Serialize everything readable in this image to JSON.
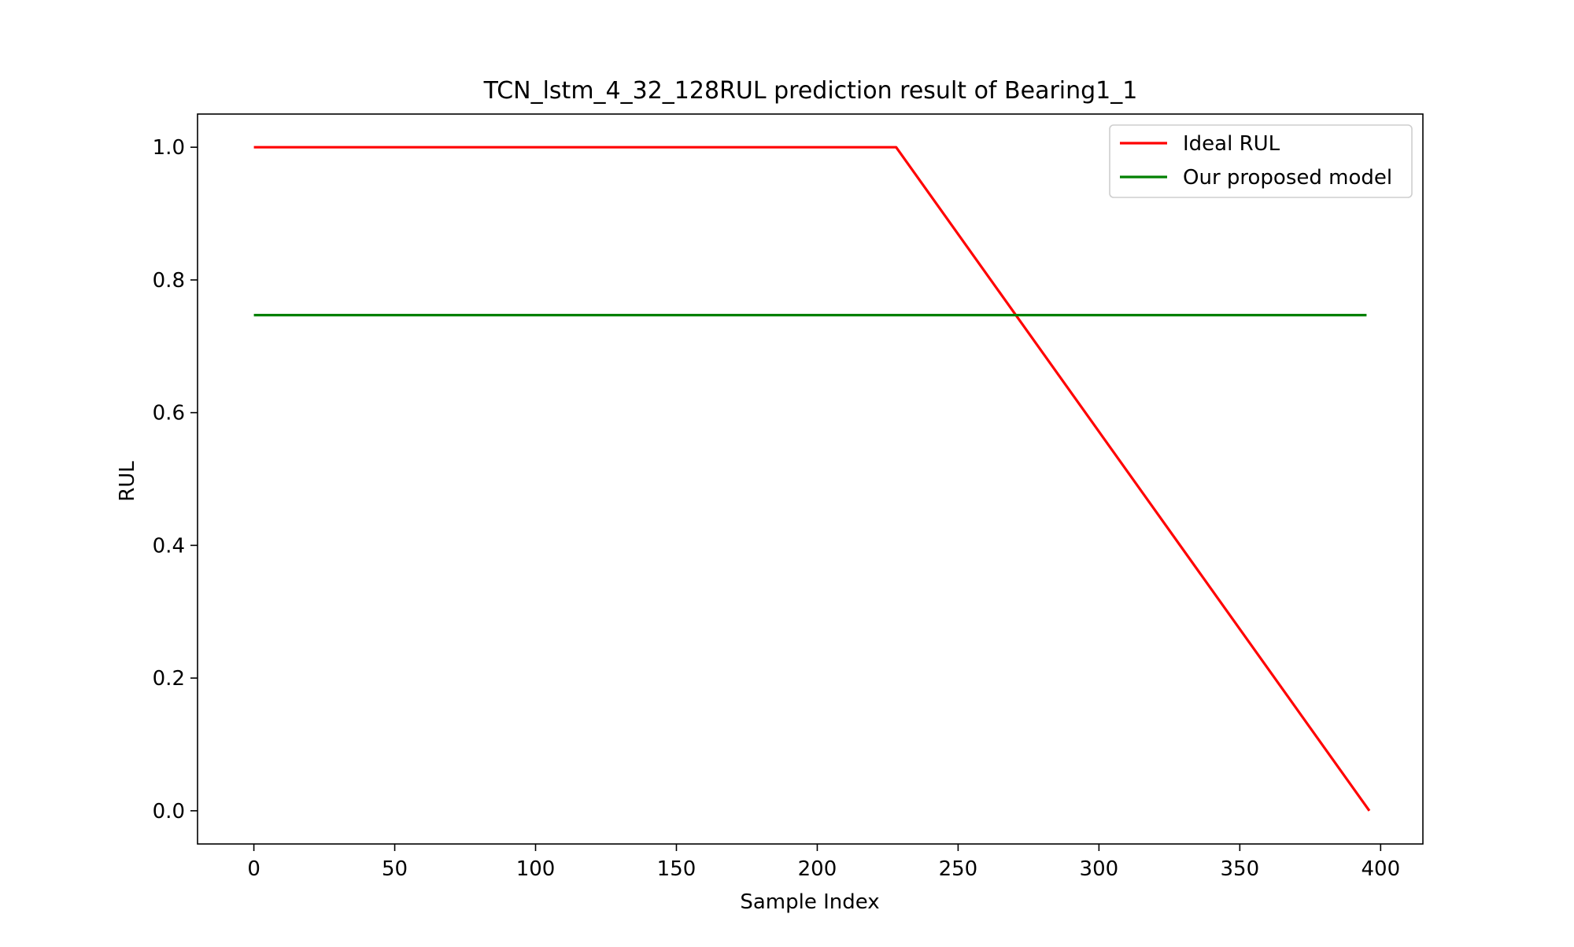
{
  "chart_data": {
    "type": "line",
    "title": "TCN_lstm_4_32_128RUL prediction result of Bearing1_1",
    "xlabel": "Sample Index",
    "ylabel": "RUL",
    "xlim": [
      -20,
      415
    ],
    "ylim": [
      -0.05,
      1.05
    ],
    "xticks": [
      0,
      50,
      100,
      150,
      200,
      250,
      300,
      350,
      400
    ],
    "xtick_labels": [
      "0",
      "50",
      "100",
      "150",
      "200",
      "250",
      "300",
      "350",
      "400"
    ],
    "yticks": [
      0.0,
      0.2,
      0.4,
      0.6,
      0.8,
      1.0
    ],
    "ytick_labels": [
      "0.0",
      "0.2",
      "0.4",
      "0.6",
      "0.8",
      "1.0"
    ],
    "grid": false,
    "legend_position": "upper right",
    "series": [
      {
        "name": "Ideal RUL",
        "color": "#ff0000",
        "x": [
          0,
          228,
          396
        ],
        "y": [
          1.0,
          1.0,
          0.0
        ]
      },
      {
        "name": "Our proposed model",
        "color": "#008000",
        "x": [
          0,
          395
        ],
        "y": [
          0.747,
          0.747
        ]
      }
    ]
  }
}
